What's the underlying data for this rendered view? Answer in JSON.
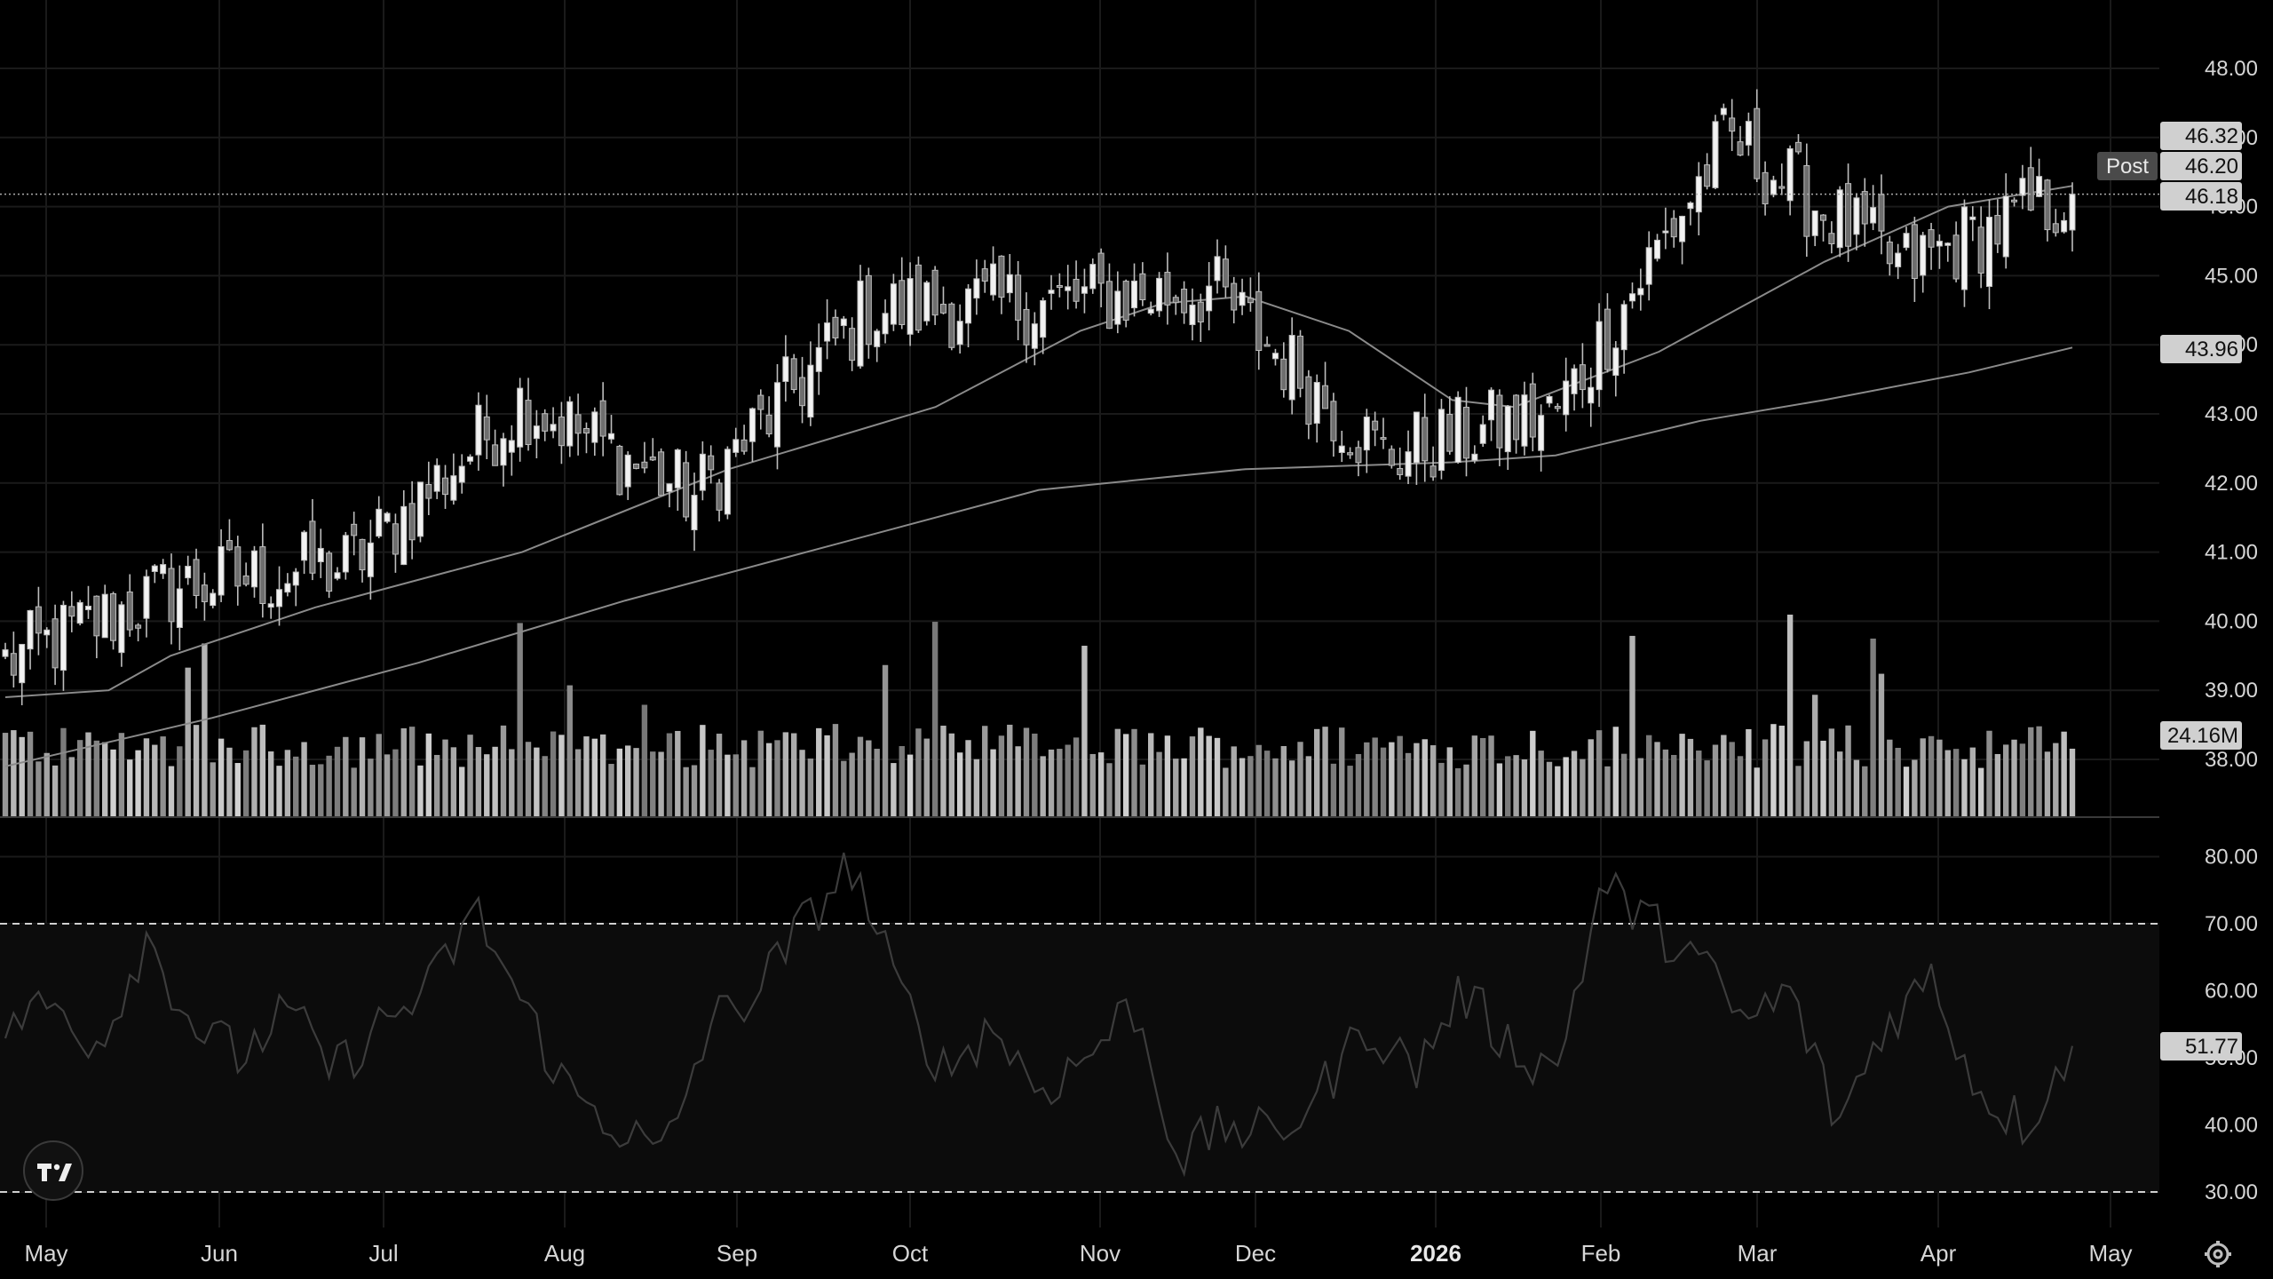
{
  "chart_data": {
    "type": "candlestick",
    "title": "",
    "price_axis": {
      "ticks": [
        "48.00",
        "47.00",
        "46.00",
        "45.00",
        "44.00",
        "43.00",
        "42.00",
        "41.00",
        "40.00",
        "39.00",
        "38.00"
      ],
      "range": [
        37.2,
        48.3
      ]
    },
    "price_tags": {
      "high": "46.32",
      "post_label": "Post",
      "post_price": "46.20",
      "last_close": "46.18",
      "ma_long": "43.96",
      "volume": "24.16M"
    },
    "ohlc_monthly_guide": [
      {
        "month": "May",
        "close": 39.4
      },
      {
        "month": "Jun",
        "close": 40.5
      },
      {
        "month": "Jul",
        "close": 40.8
      },
      {
        "month": "Aug",
        "close": 43.2
      },
      {
        "month": "Sep",
        "close": 41.8
      },
      {
        "month": "Oct",
        "close": 44.5
      },
      {
        "month": "Nov",
        "close": 44.6
      },
      {
        "month": "Dec",
        "close": 44.8
      },
      {
        "month": "2026",
        "close": 42.4
      },
      {
        "month": "Feb",
        "close": 43.0
      },
      {
        "month": "Mar",
        "close": 47.0
      },
      {
        "month": "Apr",
        "close": 45.1
      },
      {
        "month": "latest",
        "close": 46.18
      }
    ],
    "moving_averages": [
      {
        "name": "",
        "points": [
          [
            0,
            38.9
          ],
          [
            0.05,
            39.0
          ],
          [
            0.08,
            39.5
          ],
          [
            0.15,
            40.2
          ],
          [
            0.25,
            41.0
          ],
          [
            0.35,
            42.2
          ],
          [
            0.45,
            43.1
          ],
          [
            0.52,
            44.2
          ],
          [
            0.56,
            44.6
          ],
          [
            0.6,
            44.7
          ],
          [
            0.65,
            44.2
          ],
          [
            0.7,
            43.2
          ],
          [
            0.73,
            43.1
          ],
          [
            0.8,
            43.9
          ],
          [
            0.88,
            45.2
          ],
          [
            0.94,
            46.0
          ],
          [
            1.0,
            46.3
          ]
        ]
      },
      {
        "name": "",
        "points": [
          [
            0,
            37.9
          ],
          [
            0.1,
            38.6
          ],
          [
            0.2,
            39.4
          ],
          [
            0.3,
            40.3
          ],
          [
            0.4,
            41.1
          ],
          [
            0.5,
            41.9
          ],
          [
            0.6,
            42.2
          ],
          [
            0.7,
            42.3
          ],
          [
            0.75,
            42.4
          ],
          [
            0.82,
            42.9
          ],
          [
            0.88,
            43.2
          ],
          [
            0.95,
            43.6
          ],
          [
            1.0,
            43.96
          ]
        ]
      }
    ],
    "volume": {
      "label": "24.16M"
    },
    "rsi": {
      "ticks": [
        "80.00",
        "70.00",
        "60.00",
        "50.00",
        "40.00",
        "30.00"
      ],
      "overbought": 70,
      "oversold": 30,
      "current": "51.77",
      "range": [
        27,
        84
      ]
    },
    "x_axis": {
      "ticks": [
        "May",
        "Jun",
        "Jul",
        "Aug",
        "Sep",
        "Oct",
        "Nov",
        "Dec",
        "2026",
        "Feb",
        "Mar",
        "Apr",
        "May"
      ]
    },
    "grid": true
  },
  "ui": {
    "logo": "tradingview-logo-icon",
    "settings": "gear-icon"
  }
}
